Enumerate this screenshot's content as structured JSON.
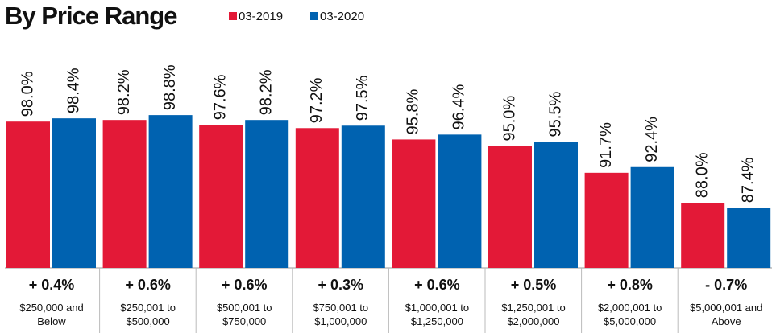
{
  "chart_data": {
    "type": "bar",
    "title": "By Price Range",
    "categories": [
      "$250,000 and\nBelow",
      "$250,001 to\n$500,000",
      "$500,001 to\n$750,000",
      "$750,001 to\n$1,000,000",
      "$1,000,001 to\n$1,250,000",
      "$1,250,001 to\n$2,000,000",
      "$2,000,001 to\n$5,000,000",
      "$5,000,001 and\nAbove"
    ],
    "series": [
      {
        "name": "03-2019",
        "color": "#e31937",
        "values": [
          98.0,
          98.2,
          97.6,
          97.2,
          95.8,
          95.0,
          91.7,
          88.0
        ],
        "value_labels": [
          "98.0%",
          "98.2%",
          "97.6%",
          "97.2%",
          "95.8%",
          "95.0%",
          "91.7%",
          "88.0%"
        ]
      },
      {
        "name": "03-2020",
        "color": "#0062b0",
        "values": [
          98.4,
          98.8,
          98.2,
          97.5,
          96.4,
          95.5,
          92.4,
          87.4
        ],
        "value_labels": [
          "98.4%",
          "98.8%",
          "98.2%",
          "97.5%",
          "96.4%",
          "95.5%",
          "92.4%",
          "87.4%"
        ]
      }
    ],
    "change_labels": [
      "+ 0.4%",
      "+ 0.6%",
      "+ 0.6%",
      "+ 0.3%",
      "+ 0.6%",
      "+ 0.5%",
      "+ 0.8%",
      "- 0.7%"
    ],
    "ylim": [
      80,
      100
    ]
  }
}
